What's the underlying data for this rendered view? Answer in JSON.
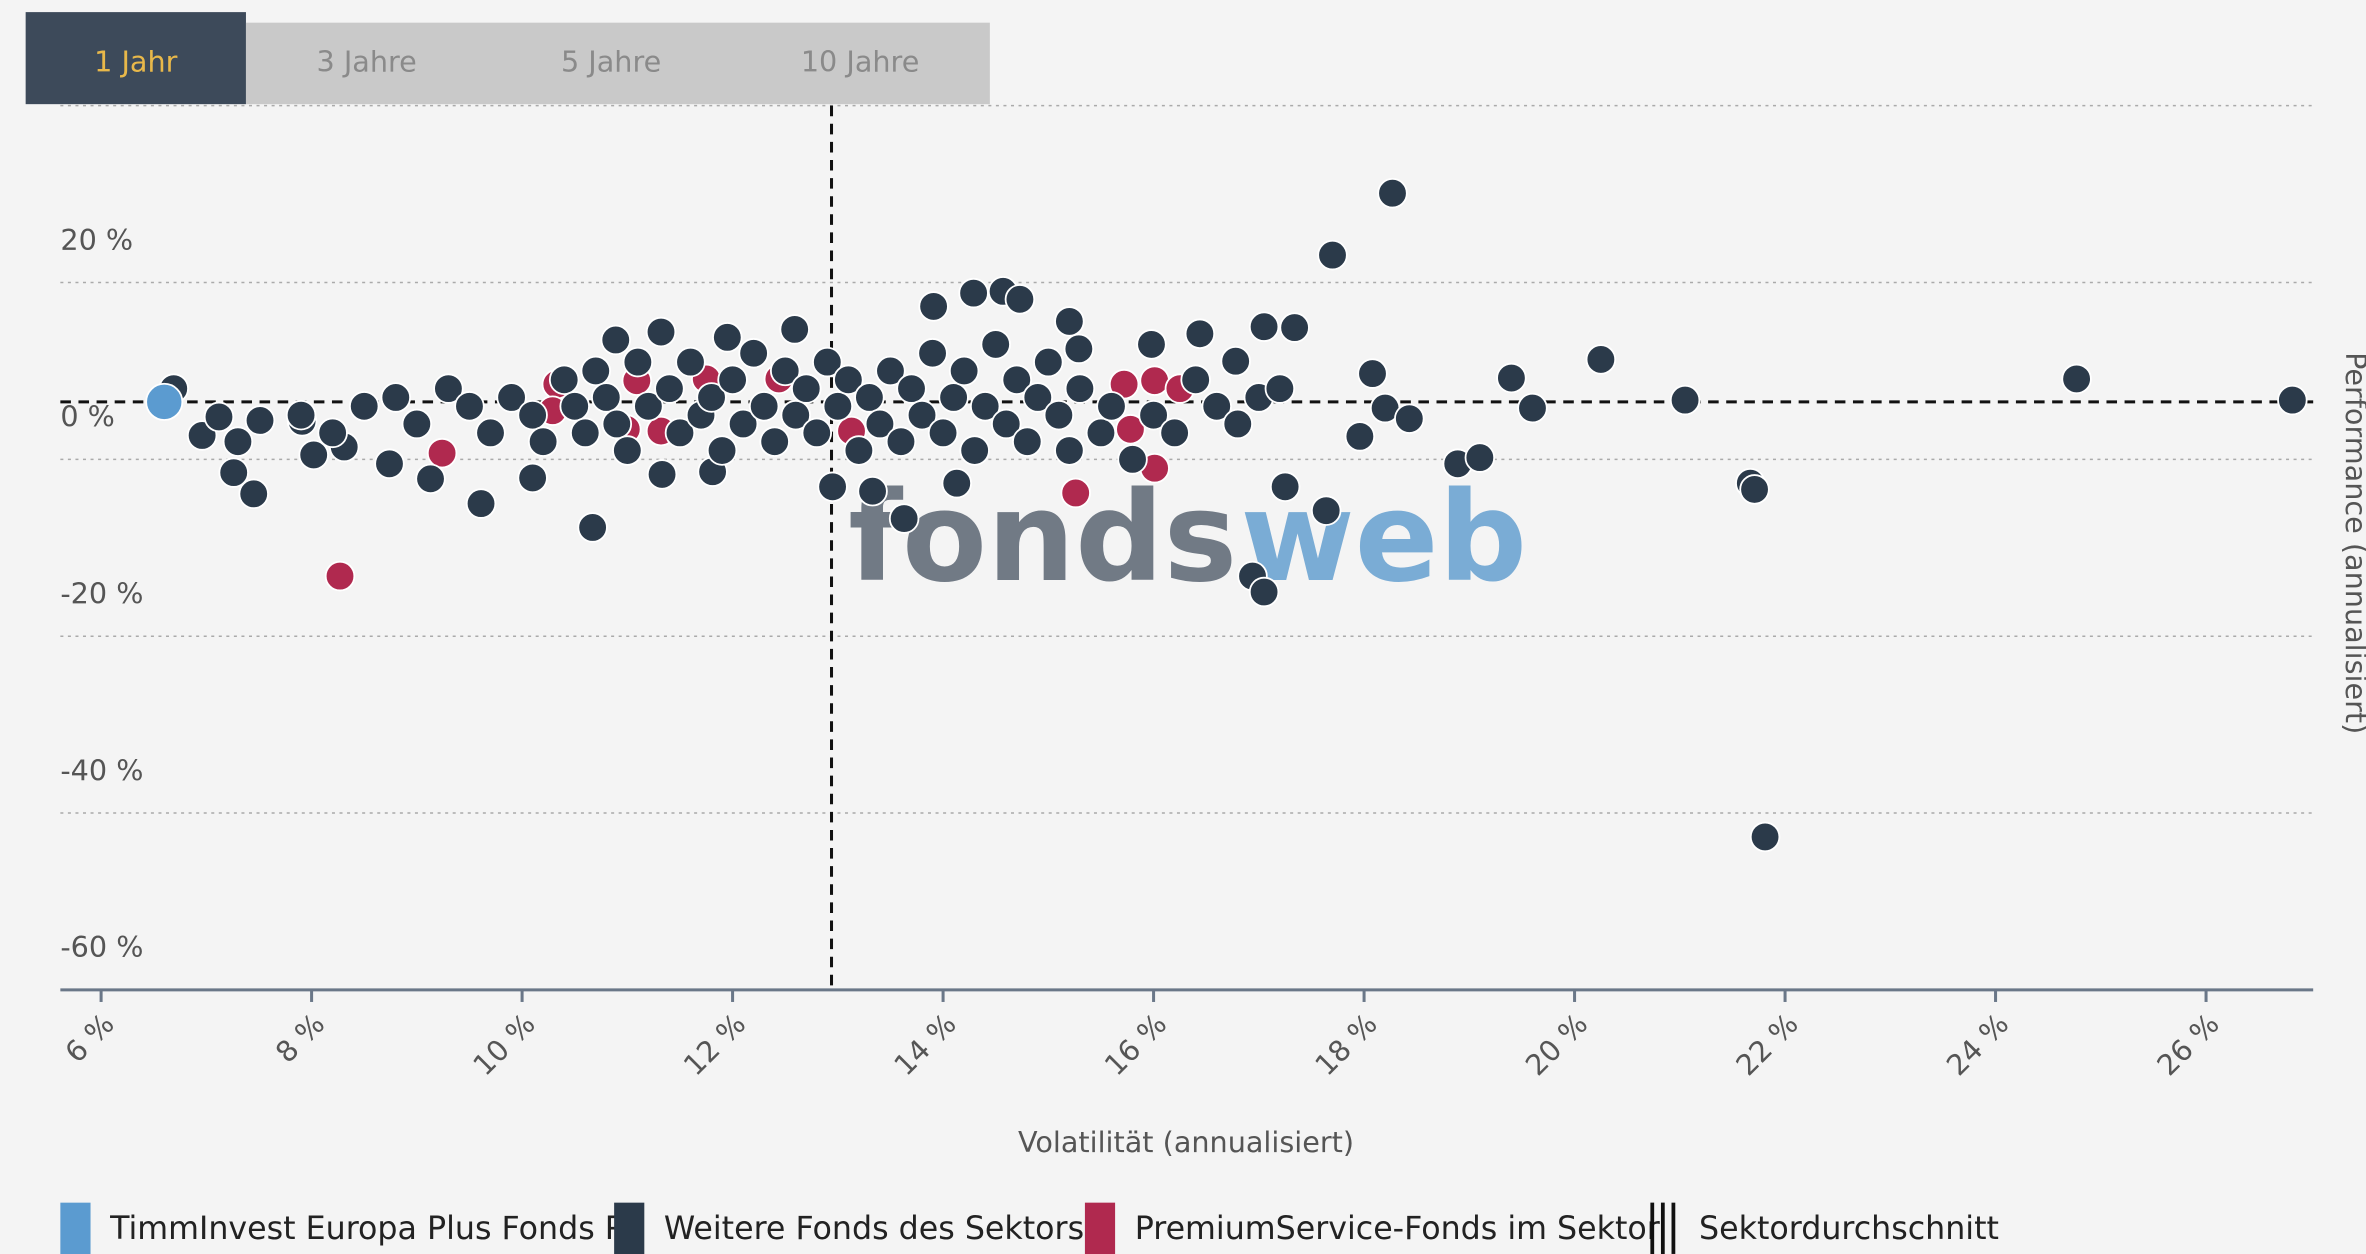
{
  "tabs": [
    "1 Jahr",
    "3 Jahre",
    "5 Jahre",
    "10 Jahre"
  ],
  "chart_data": {
    "type": "scatter",
    "x_label": "Volatilität (annualisiert)",
    "y_label": "Performance (annualisiert)",
    "watermark": [
      "fonds",
      "web"
    ],
    "xlim": [
      6,
      26.9
    ],
    "ylim": [
      -60,
      40
    ],
    "xticks": [
      {
        "value": 6,
        "label": "6 %"
      },
      {
        "value": 8,
        "label": "8 %"
      },
      {
        "value": 10,
        "label": "10 %"
      },
      {
        "value": 12,
        "label": "12 %"
      },
      {
        "value": 14,
        "label": "14 %"
      },
      {
        "value": 16,
        "label": "16 %"
      },
      {
        "value": 18,
        "label": "18 %"
      },
      {
        "value": 20,
        "label": "20 %"
      },
      {
        "value": 22,
        "label": "22 %"
      },
      {
        "value": 24,
        "label": "24 %"
      },
      {
        "value": 26,
        "label": "26 %"
      }
    ],
    "yticks": [
      {
        "value": -60,
        "label": "-60 %"
      },
      {
        "value": -40,
        "label": "-40 %"
      },
      {
        "value": -20,
        "label": "-20 %"
      },
      {
        "value": 0,
        "label": "0 %"
      },
      {
        "value": 20,
        "label": "20 %"
      }
    ],
    "grid": true,
    "average": {
      "name": "Sektordurchschnitt",
      "x": 12.94,
      "y": 6.5
    },
    "series": [
      {
        "name": "TimmInvest Europa Plus Fonds P",
        "color": "#5b9bd0",
        "x": [
          6.6
        ],
        "values": [
          6.5
        ]
      },
      {
        "name": "Weitere Fonds des Sektors",
        "color": "#2b3a4a",
        "x": [
          18.27,
          17.7,
          21.81,
          24.77,
          26.82,
          21.05,
          20.25,
          19.4,
          19.6,
          18.89,
          19.1,
          21.67,
          21.71,
          17.25,
          17.64,
          16.94,
          17.05,
          17.96,
          18.08,
          18.2,
          18.43,
          17.34,
          17.05,
          10.67,
          13.63,
          9.61,
          7.45,
          7.26,
          6.69,
          6.96,
          7.12,
          7.51,
          7.91,
          8.02,
          8.31,
          8.74,
          9.13,
          10.1,
          11.33,
          11.81,
          12.95,
          13.33,
          14.13,
          13.91,
          14.29,
          14.57,
          14.73,
          15.2,
          12.59,
          11.32,
          10.89,
          11.95,
          16.44,
          15.29,
          15.98,
          16.78,
          8.5,
          8.8,
          9.0,
          9.3,
          9.5,
          9.7,
          9.9,
          10.1,
          10.2,
          10.4,
          10.5,
          10.6,
          10.7,
          10.8,
          10.9,
          11.0,
          11.1,
          11.2,
          11.4,
          11.5,
          11.6,
          11.7,
          11.8,
          11.9,
          12.0,
          12.1,
          12.2,
          12.3,
          12.4,
          12.5,
          12.6,
          12.7,
          12.8,
          12.9,
          13.0,
          13.1,
          13.2,
          13.3,
          13.4,
          13.5,
          13.6,
          13.7,
          13.8,
          13.9,
          14.0,
          14.1,
          14.2,
          14.3,
          14.4,
          14.5,
          14.6,
          14.7,
          14.8,
          14.9,
          15.0,
          15.1,
          15.2,
          15.3,
          15.5,
          15.6,
          15.8,
          16.0,
          16.2,
          16.4,
          16.6,
          16.8,
          17.0,
          17.2,
          8.2,
          7.9,
          7.3
        ],
        "values": [
          30.1,
          23.1,
          -42.7,
          9.1,
          6.7,
          6.7,
          11.3,
          9.2,
          5.8,
          -0.5,
          0.2,
          -2.7,
          -3.4,
          -3.1,
          -5.8,
          -13.2,
          -15.0,
          2.6,
          9.7,
          5.8,
          4.6,
          14.9,
          15.0,
          -7.7,
          -6.7,
          -5.0,
          -3.9,
          -1.5,
          8.0,
          2.7,
          4.8,
          4.4,
          4.3,
          0.5,
          1.4,
          -0.5,
          -2.2,
          -2.1,
          -1.7,
          -1.4,
          -3.1,
          -3.6,
          -2.7,
          17.3,
          18.8,
          19.0,
          18.1,
          15.6,
          14.7,
          14.4,
          13.5,
          13.8,
          14.2,
          12.5,
          13.0,
          11.1,
          6,
          7,
          4,
          8,
          6,
          3,
          7,
          5,
          2,
          9,
          6,
          3,
          10,
          7,
          4,
          1,
          11,
          6,
          8,
          3,
          11,
          5,
          7,
          1,
          9,
          4,
          12,
          6,
          2,
          10,
          5,
          8,
          3,
          11,
          6,
          9,
          1,
          7,
          4,
          10,
          2,
          8,
          5,
          12,
          3,
          7,
          10,
          1,
          6,
          13,
          4,
          9,
          2,
          7,
          11,
          5,
          1,
          8,
          3,
          6,
          0,
          5,
          3,
          9,
          6,
          4,
          7,
          8,
          3,
          5,
          2
        ]
      },
      {
        "name": "PremiumService-Fonds im Sektor",
        "color": "#b0294f",
        "x": [
          10.33,
          10.29,
          11.09,
          10.99,
          11.32,
          11.75,
          12.44,
          13.13,
          9.24,
          8.27,
          15.26,
          15.72,
          16.01,
          16.25,
          15.78,
          16.01
        ],
        "values": [
          8.5,
          5.5,
          8.9,
          3.4,
          3.2,
          9.1,
          9.1,
          3.2,
          0.7,
          -13.2,
          -3.8,
          8.5,
          8.9,
          8.0,
          3.4,
          -1.0
        ]
      }
    ]
  }
}
